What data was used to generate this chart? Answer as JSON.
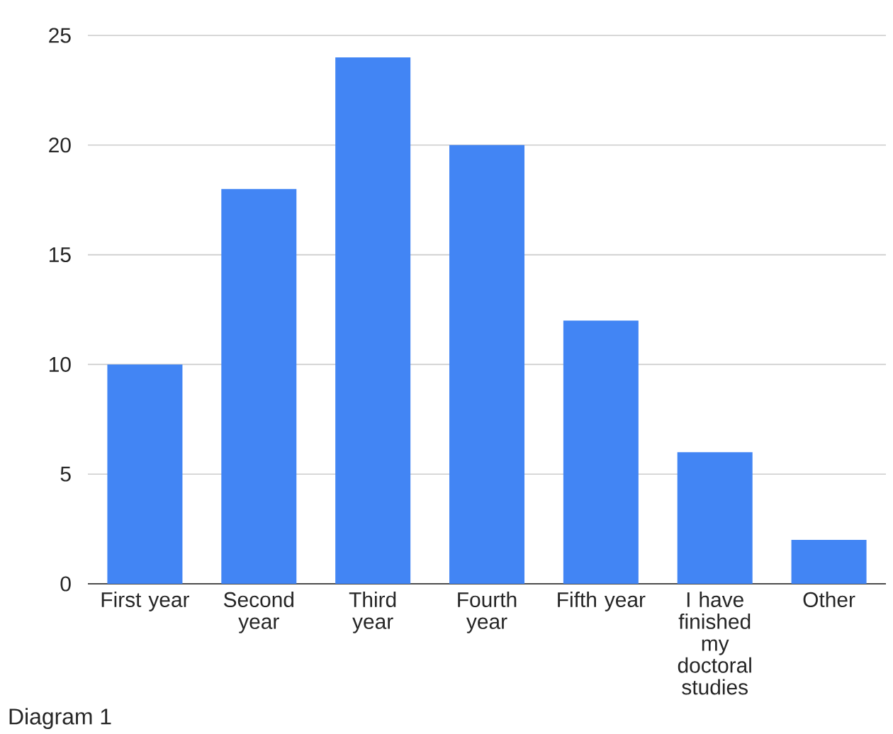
{
  "chart_data": {
    "type": "bar",
    "categories": [
      "First year",
      "Second year",
      "Third year",
      "Fourth year",
      "Fifth year",
      "I have finished my doctoral studies",
      "Other"
    ],
    "values": [
      10,
      18,
      24,
      20,
      12,
      6,
      2
    ],
    "color": "#4285f4",
    "ylim": [
      0,
      25
    ],
    "yticks": [
      0,
      5,
      10,
      15,
      20,
      25
    ],
    "grid": "y",
    "annotations": [
      "Diagram 1"
    ]
  }
}
